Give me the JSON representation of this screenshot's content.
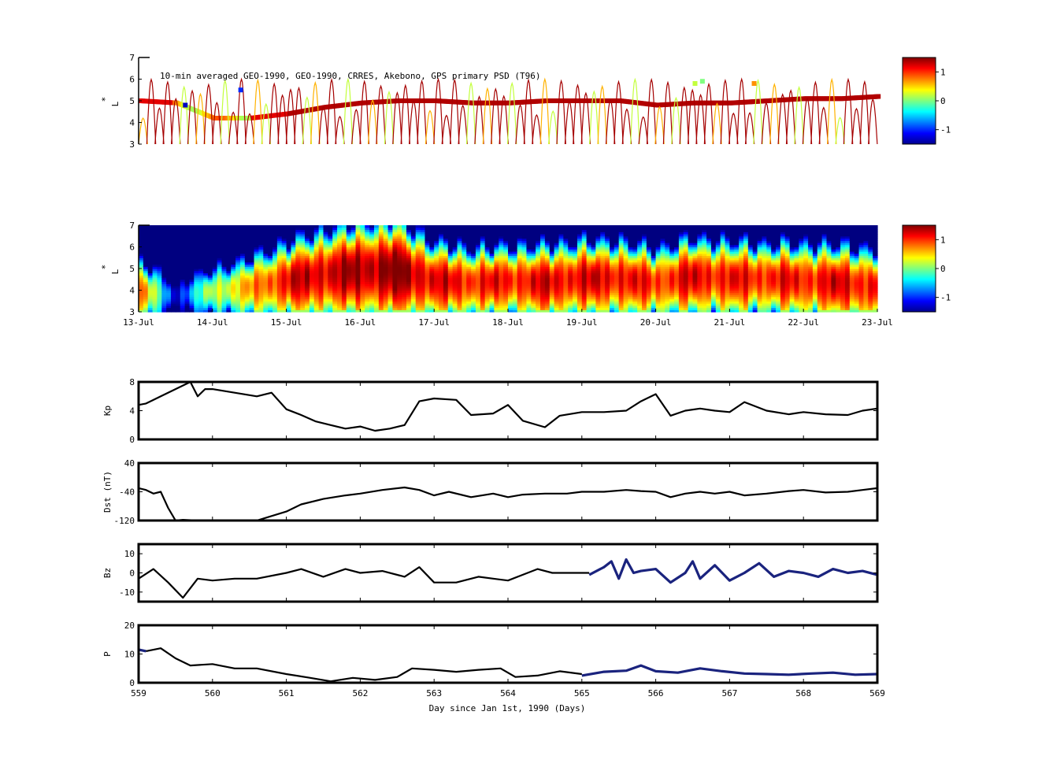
{
  "chart_data": [
    {
      "id": "psd-observed",
      "type": "scatter",
      "title": "10-min averaged GEO-1990, GEO-1990, CRRES, Akebono, GPS  primary PSD (T96)",
      "ylabel": "L*",
      "ylabel_chars": [
        "*",
        "L"
      ],
      "xlim": [
        559,
        569
      ],
      "ylim": [
        3,
        7
      ],
      "yticks": [
        3,
        4,
        5,
        6,
        7
      ],
      "colorbar": {
        "range": [
          -1.5,
          1.5
        ],
        "ticks": [
          1,
          0,
          -1
        ],
        "tick_labels": [
          "1",
          "0",
          "-1"
        ],
        "colormap": "jet"
      },
      "tracks": [
        {
          "name": "GEO",
          "points": [
            [
              559.0,
              5.0
            ],
            [
              559.5,
              4.9
            ],
            [
              560.0,
              4.2
            ],
            [
              560.5,
              4.2
            ],
            [
              561.0,
              4.4
            ],
            [
              561.5,
              4.7
            ],
            [
              562.0,
              4.9
            ],
            [
              562.5,
              5.0
            ],
            [
              563.0,
              5.0
            ],
            [
              563.5,
              4.9
            ],
            [
              564.0,
              4.9
            ],
            [
              564.5,
              5.0
            ],
            [
              565.0,
              5.0
            ],
            [
              565.5,
              5.0
            ],
            [
              566.0,
              4.8
            ],
            [
              566.5,
              4.9
            ],
            [
              567.0,
              4.9
            ],
            [
              567.5,
              5.0
            ],
            [
              568.0,
              5.1
            ],
            [
              568.5,
              5.1
            ],
            [
              569.0,
              5.2
            ]
          ]
        }
      ]
    },
    {
      "id": "psd-reanalysis",
      "type": "heatmap",
      "ylabel": "L*",
      "ylabel_chars": [
        "*",
        "L"
      ],
      "xlim": [
        559,
        569
      ],
      "ylim": [
        3,
        7
      ],
      "yticks": [
        3,
        4,
        5,
        6,
        7
      ],
      "date_ticks": [
        "13-Jul",
        "14-Jul",
        "15-Jul",
        "16-Jul",
        "17-Jul",
        "18-Jul",
        "19-Jul",
        "20-Jul",
        "21-Jul",
        "22-Jul",
        "23-Jul"
      ],
      "colorbar": {
        "range": [
          -1.5,
          1.5
        ],
        "ticks": [
          1,
          0,
          -1
        ],
        "tick_labels": [
          "1",
          "0",
          "-1"
        ],
        "colormap": "jet"
      },
      "profile_days": [
        559.0,
        559.5,
        560.0,
        560.5,
        561.0,
        561.5,
        562.0,
        562.5,
        563.0,
        563.5,
        564.0,
        564.5,
        565.0,
        565.5,
        566.0,
        566.5,
        567.0,
        567.5,
        568.0,
        568.5,
        569.0
      ],
      "peak_L": [
        4.0,
        3.8,
        4.0,
        4.2,
        4.5,
        4.8,
        5.0,
        5.0,
        4.5,
        4.4,
        4.5,
        4.4,
        4.6,
        4.6,
        4.4,
        4.7,
        4.6,
        4.6,
        4.5,
        4.4,
        4.2
      ],
      "peak_value": [
        1.0,
        -1.2,
        0.2,
        0.6,
        1.2,
        1.3,
        1.4,
        1.5,
        1.2,
        1.1,
        1.1,
        1.2,
        1.2,
        1.2,
        1.0,
        1.2,
        1.1,
        1.1,
        1.1,
        1.2,
        1.1
      ],
      "width_L": [
        1.2,
        1.0,
        1.0,
        1.2,
        1.4,
        1.6,
        1.7,
        1.8,
        1.4,
        1.3,
        1.3,
        1.4,
        1.4,
        1.4,
        1.3,
        1.4,
        1.4,
        1.3,
        1.4,
        1.4,
        1.4
      ]
    },
    {
      "id": "kp",
      "type": "line",
      "ylabel": "Kp",
      "xlim": [
        559,
        569
      ],
      "ylim": [
        0,
        8
      ],
      "yticks": [
        0,
        4,
        8
      ],
      "ytick_labels": [
        "0",
        "4",
        "8"
      ],
      "series": [
        {
          "color": "#000000",
          "x": [
            559.0,
            559.1,
            559.3,
            559.5,
            559.7,
            559.8,
            559.9,
            560.0,
            560.3,
            560.6,
            560.8,
            561.0,
            561.2,
            561.4,
            561.6,
            561.8,
            562.0,
            562.2,
            562.4,
            562.6,
            562.8,
            563.0,
            563.3,
            563.5,
            563.8,
            564.0,
            564.2,
            564.5,
            564.7,
            565.0,
            565.3,
            565.6,
            565.8,
            566.0,
            566.2,
            566.4,
            566.6,
            566.8,
            567.0,
            567.2,
            567.5,
            567.8,
            568.0,
            568.3,
            568.6,
            568.8,
            569.0
          ],
          "y": [
            4.8,
            5.0,
            6.0,
            7.0,
            8.0,
            6.0,
            7.0,
            7.0,
            6.5,
            6.0,
            6.5,
            4.2,
            3.4,
            2.5,
            2.0,
            1.5,
            1.8,
            1.2,
            1.5,
            2.0,
            5.3,
            5.7,
            5.5,
            3.4,
            3.6,
            4.8,
            2.6,
            1.7,
            3.3,
            3.8,
            3.8,
            4.0,
            5.3,
            6.3,
            3.3,
            4.0,
            4.3,
            4.0,
            3.8,
            5.2,
            4.0,
            3.5,
            3.8,
            3.5,
            3.4,
            4.0,
            4.3
          ]
        }
      ]
    },
    {
      "id": "dst",
      "type": "line",
      "ylabel": "Dst (nT)",
      "xlim": [
        559,
        569
      ],
      "ylim": [
        -120,
        40
      ],
      "yticks": [
        -120,
        -40,
        40
      ],
      "ytick_labels": [
        "-120",
        "-40",
        "40"
      ],
      "series": [
        {
          "color": "#000000",
          "x": [
            559.0,
            559.1,
            559.2,
            559.3,
            559.4,
            559.5,
            559.6,
            559.8,
            560.0,
            560.3,
            560.6,
            561.0,
            561.2,
            561.5,
            561.8,
            562.0,
            562.3,
            562.6,
            562.8,
            563.0,
            563.2,
            563.5,
            563.8,
            564.0,
            564.2,
            564.5,
            564.8,
            565.0,
            565.3,
            565.6,
            565.8,
            566.0,
            566.2,
            566.4,
            566.6,
            566.8,
            567.0,
            567.2,
            567.5,
            567.8,
            568.0,
            568.3,
            568.6,
            568.8,
            569.0
          ],
          "y": [
            -30,
            -35,
            -45,
            -40,
            -85,
            -120,
            -118,
            -120,
            -121,
            -121,
            -120,
            -95,
            -75,
            -60,
            -50,
            -45,
            -35,
            -28,
            -35,
            -50,
            -40,
            -55,
            -45,
            -55,
            -48,
            -45,
            -45,
            -40,
            -40,
            -35,
            -38,
            -40,
            -55,
            -45,
            -40,
            -45,
            -40,
            -50,
            -45,
            -38,
            -35,
            -42,
            -40,
            -35,
            -30
          ]
        }
      ]
    },
    {
      "id": "bz",
      "type": "line",
      "ylabel": "Bz",
      "xlim": [
        559,
        569
      ],
      "ylim": [
        -15,
        15
      ],
      "yticks": [
        -10,
        0,
        10
      ],
      "ytick_labels": [
        "-10",
        "0",
        "10"
      ],
      "series": [
        {
          "color": "#000000",
          "x": [
            559.0,
            559.2,
            559.4,
            559.6,
            559.8,
            560.0,
            560.3,
            560.6,
            561.0,
            561.2,
            561.5,
            561.8,
            562.0,
            562.3,
            562.6,
            562.8,
            563.0,
            563.3,
            563.6,
            563.8,
            564.0,
            564.2,
            564.4,
            564.6,
            564.8,
            565.0,
            565.1
          ],
          "y": [
            -3,
            2,
            -5,
            -13,
            -3,
            -4,
            -3,
            -3,
            0,
            2,
            -2,
            2,
            0,
            1,
            -2,
            3,
            -5,
            -5,
            -2,
            -3,
            -4,
            -1,
            2,
            0,
            0,
            0,
            0
          ]
        },
        {
          "color": "#1a237e",
          "x": [
            565.1,
            565.3,
            565.4,
            565.5,
            565.6,
            565.7,
            565.8,
            566.0,
            566.2,
            566.4,
            566.5,
            566.6,
            566.8,
            567.0,
            567.2,
            567.4,
            567.6,
            567.8,
            568.0,
            568.2,
            568.4,
            568.6,
            568.8,
            569.0
          ],
          "y": [
            -1,
            3,
            6,
            -3,
            7,
            0,
            1,
            2,
            -5,
            0,
            6,
            -3,
            4,
            -4,
            0,
            5,
            -2,
            1,
            0,
            -2,
            2,
            0,
            1,
            -1
          ]
        }
      ]
    },
    {
      "id": "pdyn",
      "type": "line",
      "ylabel": "P",
      "xlim": [
        559,
        569
      ],
      "ylim": [
        0,
        20
      ],
      "yticks": [
        0,
        10,
        20
      ],
      "ytick_labels": [
        "0",
        "10",
        "20"
      ],
      "xticks": [
        559,
        560,
        561,
        562,
        563,
        564,
        565,
        566,
        567,
        568,
        569
      ],
      "xtick_labels": [
        "559",
        "560",
        "561",
        "562",
        "563",
        "564",
        "565",
        "566",
        "567",
        "568",
        "569"
      ],
      "xlabel": "Day since Jan 1st, 1990 (Days)",
      "series": [
        {
          "color": "#1a237e",
          "x": [
            559.0,
            559.1
          ],
          "y": [
            11.5,
            11.0
          ]
        },
        {
          "color": "#000000",
          "x": [
            559.1,
            559.3,
            559.5,
            559.7,
            560.0,
            560.3,
            560.6,
            561.0,
            561.3,
            561.6,
            561.9,
            562.2,
            562.5,
            562.7,
            563.0,
            563.3,
            563.6,
            563.9,
            564.1,
            564.4,
            564.7,
            565.0
          ],
          "y": [
            11.0,
            12.0,
            8.5,
            6.0,
            6.5,
            5.0,
            5.0,
            3.0,
            1.8,
            0.5,
            1.7,
            1.0,
            2.0,
            5.0,
            4.5,
            3.8,
            4.5,
            5.0,
            2.0,
            2.5,
            4.0,
            3.0
          ]
        },
        {
          "color": "#1a237e",
          "x": [
            565.0,
            565.3,
            565.6,
            565.8,
            566.0,
            566.3,
            566.6,
            566.9,
            567.2,
            567.5,
            567.8,
            568.1,
            568.4,
            568.7,
            569.0
          ],
          "y": [
            2.5,
            3.8,
            4.2,
            6.0,
            4.0,
            3.5,
            5.0,
            4.0,
            3.2,
            3.0,
            2.8,
            3.2,
            3.5,
            2.8,
            3.0
          ]
        }
      ]
    }
  ]
}
